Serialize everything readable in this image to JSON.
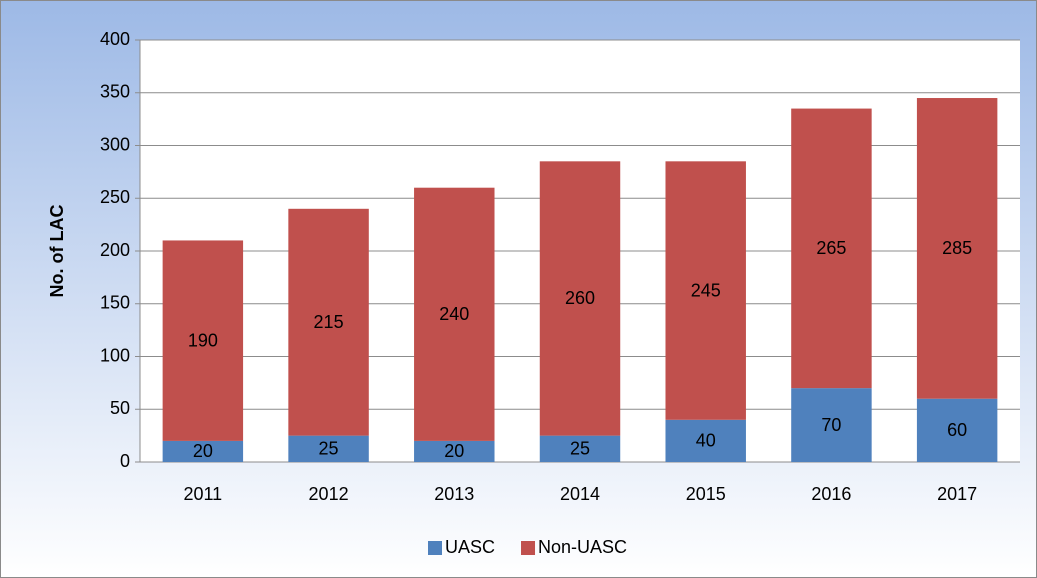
{
  "chart_data": {
    "type": "stacked_bar",
    "y_label": "No. of LAC",
    "categories": [
      "2011",
      "2012",
      "2013",
      "2014",
      "2015",
      "2016",
      "2017"
    ],
    "series": [
      {
        "name": "UASC",
        "color": "#4f81bd",
        "values": [
          20,
          25,
          20,
          25,
          40,
          70,
          60
        ]
      },
      {
        "name": "Non-UASC",
        "color": "#c0504d",
        "values": [
          190,
          215,
          240,
          260,
          245,
          265,
          285
        ]
      }
    ],
    "ylim": [
      0,
      400
    ],
    "yticks": [
      0,
      50,
      100,
      150,
      200,
      250,
      300,
      350,
      400
    ],
    "grid": true,
    "legend": "bottom"
  }
}
